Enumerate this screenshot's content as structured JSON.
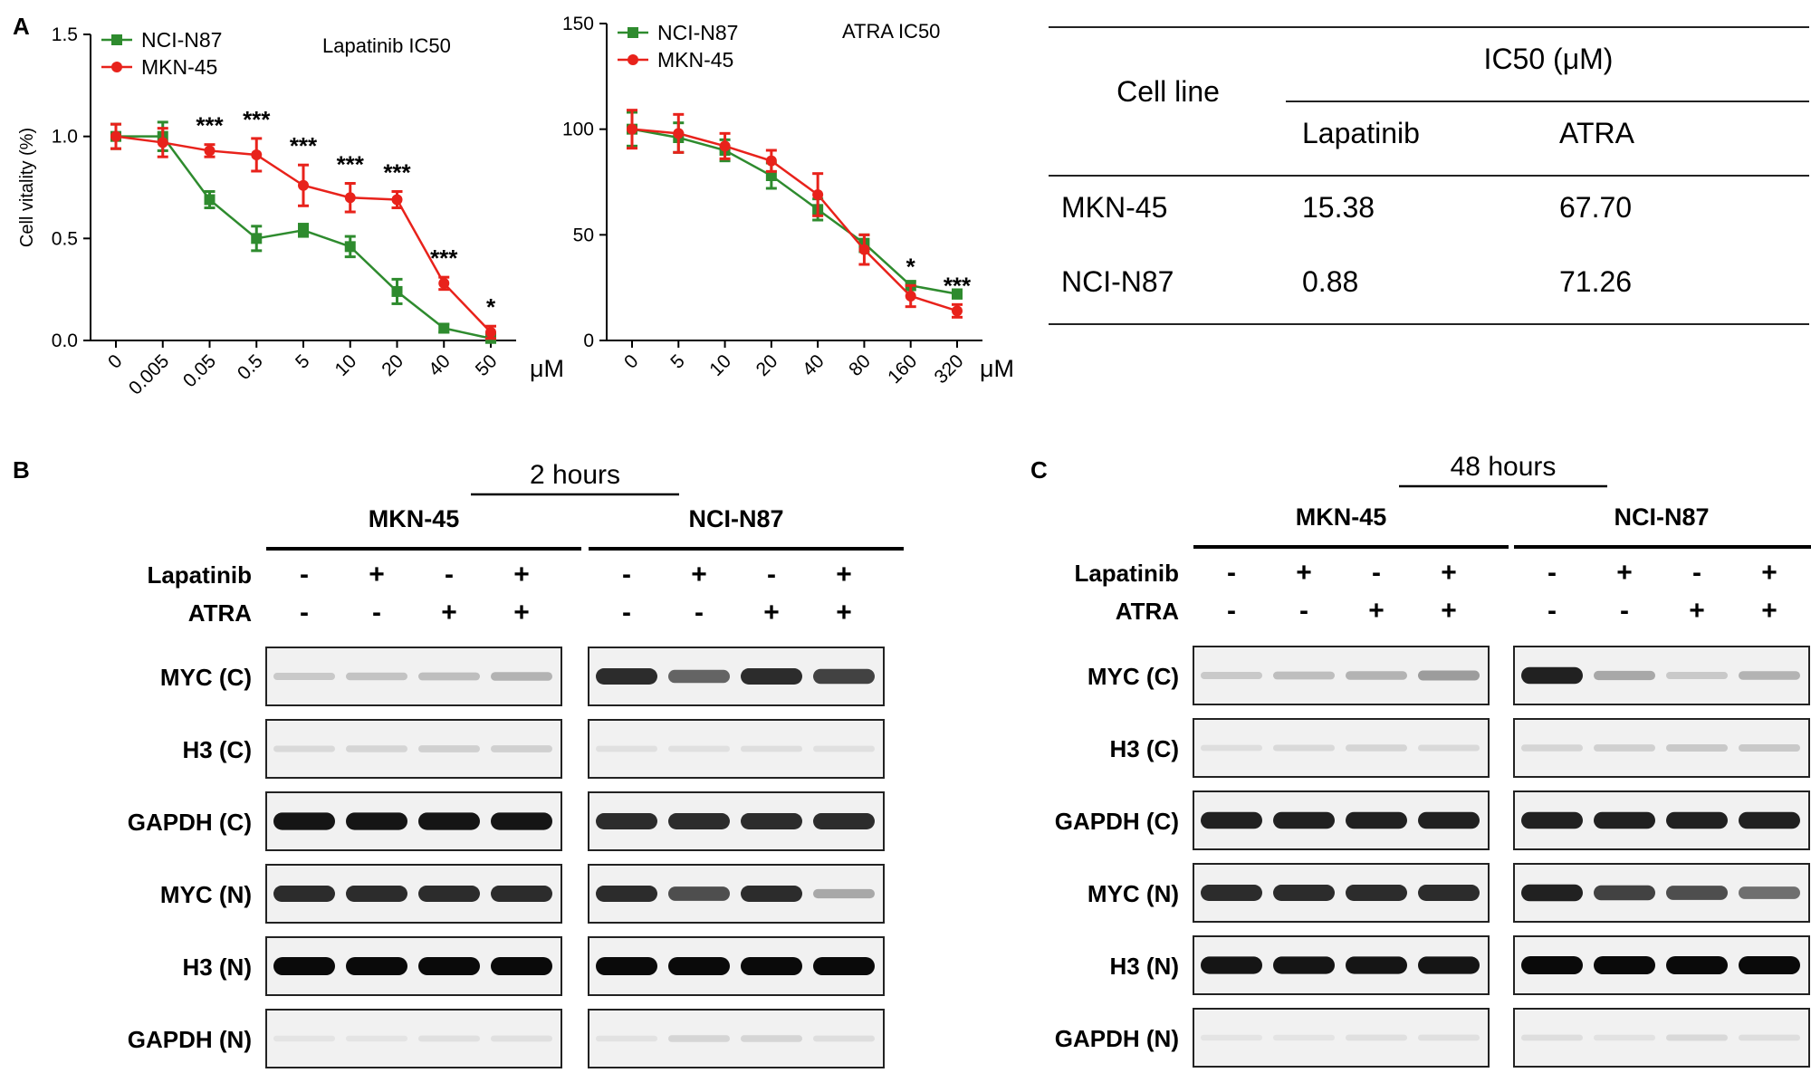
{
  "panel_labels": {
    "a": "A",
    "b": "B",
    "c": "C"
  },
  "chart_data": [
    {
      "type": "line",
      "title": "Lapatinib IC50",
      "xlabel": "",
      "ylabel": "Cell vitality (%)",
      "x_unit": "μM",
      "categories": [
        "0",
        "0.005",
        "0.05",
        "0.5",
        "5",
        "10",
        "20",
        "40",
        "50"
      ],
      "ylim": [
        0,
        1.5
      ],
      "yticks": [
        "0.0",
        "0.5",
        "1.0",
        "1.5"
      ],
      "legend_position": "top-left",
      "series": [
        {
          "name": "NCI-N87",
          "color": "#2e8b2e",
          "marker": "square",
          "values": [
            1.0,
            1.0,
            0.69,
            0.5,
            0.54,
            0.46,
            0.24,
            0.06,
            0.01
          ],
          "errors": [
            0.06,
            0.07,
            0.04,
            0.06,
            0.03,
            0.05,
            0.06,
            0.02,
            0.02
          ]
        },
        {
          "name": "MKN-45",
          "color": "#e8221b",
          "marker": "circle",
          "values": [
            1.0,
            0.97,
            0.93,
            0.91,
            0.76,
            0.7,
            0.69,
            0.28,
            0.04
          ],
          "errors": [
            0.06,
            0.07,
            0.03,
            0.08,
            0.1,
            0.07,
            0.04,
            0.03,
            0.03
          ]
        }
      ],
      "annotations": [
        "",
        "",
        "***",
        "***",
        "***",
        "***",
        "***",
        "***",
        "*"
      ]
    },
    {
      "type": "line",
      "title": "ATRA IC50",
      "xlabel": "",
      "ylabel": "",
      "x_unit": "μM",
      "categories": [
        "0",
        "5",
        "10",
        "20",
        "40",
        "80",
        "160",
        "320"
      ],
      "ylim": [
        0,
        150
      ],
      "yticks": [
        "0",
        "50",
        "100",
        "150"
      ],
      "legend_position": "top-left",
      "series": [
        {
          "name": "NCI-N87",
          "color": "#2e8b2e",
          "marker": "square",
          "values": [
            100,
            96,
            90,
            78,
            62,
            46,
            26,
            22
          ],
          "errors": [
            8,
            7,
            5,
            6,
            5,
            4,
            2,
            2
          ]
        },
        {
          "name": "MKN-45",
          "color": "#e8221b",
          "marker": "circle",
          "values": [
            100,
            98,
            92,
            85,
            69,
            43,
            21,
            14
          ],
          "errors": [
            9,
            9,
            6,
            5,
            10,
            7,
            5,
            3
          ]
        }
      ],
      "annotations": [
        "",
        "",
        "",
        "",
        "",
        "",
        "*",
        "***"
      ]
    },
    {
      "type": "table",
      "row_header": "Cell line",
      "group_header": "IC50 (μM)",
      "columns": [
        "Lapatinib",
        "ATRA"
      ],
      "rows": [
        {
          "label": "MKN-45",
          "values": [
            "15.38",
            "67.70"
          ]
        },
        {
          "label": "NCI-N87",
          "values": [
            "0.88",
            "71.26"
          ]
        }
      ]
    }
  ],
  "blots": [
    {
      "time_label": "2 hours",
      "cell_lines": [
        "MKN-45",
        "NCI-N87"
      ],
      "treatments": [
        {
          "name": "Lapatinib",
          "states": [
            "-",
            "+",
            "-",
            "+"
          ]
        },
        {
          "name": "ATRA",
          "states": [
            "-",
            "-",
            "+",
            "+"
          ]
        }
      ],
      "bands": [
        {
          "label": "MYC (C)",
          "intensity": [
            [
              0.15,
              0.18,
              0.2,
              0.25
            ],
            [
              0.85,
              0.6,
              0.85,
              0.75
            ]
          ]
        },
        {
          "label": "H3 (C)",
          "intensity": [
            [
              0.08,
              0.1,
              0.12,
              0.12
            ],
            [
              0.05,
              0.05,
              0.06,
              0.05
            ]
          ]
        },
        {
          "label": "GAPDH (C)",
          "intensity": [
            [
              0.95,
              0.95,
              0.95,
              0.95
            ],
            [
              0.85,
              0.85,
              0.85,
              0.85
            ]
          ]
        },
        {
          "label": "MYC (N)",
          "intensity": [
            [
              0.85,
              0.85,
              0.85,
              0.85
            ],
            [
              0.85,
              0.7,
              0.85,
              0.3
            ]
          ]
        },
        {
          "label": "H3 (N)",
          "intensity": [
            [
              1.0,
              1.0,
              1.0,
              1.0
            ],
            [
              1.0,
              1.0,
              1.0,
              1.0
            ]
          ]
        },
        {
          "label": "GAPDH (N)",
          "intensity": [
            [
              0.03,
              0.03,
              0.05,
              0.05
            ],
            [
              0.04,
              0.1,
              0.1,
              0.06
            ]
          ]
        }
      ]
    },
    {
      "time_label": "48 hours",
      "cell_lines": [
        "MKN-45",
        "NCI-N87"
      ],
      "treatments": [
        {
          "name": "Lapatinib",
          "states": [
            "-",
            "+",
            "-",
            "+"
          ]
        },
        {
          "name": "ATRA",
          "states": [
            "-",
            "-",
            "+",
            "+"
          ]
        }
      ],
      "bands": [
        {
          "label": "MYC (C)",
          "intensity": [
            [
              0.15,
              0.2,
              0.25,
              0.35
            ],
            [
              0.9,
              0.3,
              0.15,
              0.25
            ]
          ]
        },
        {
          "label": "H3 (C)",
          "intensity": [
            [
              0.06,
              0.08,
              0.1,
              0.08
            ],
            [
              0.1,
              0.12,
              0.15,
              0.15
            ]
          ]
        },
        {
          "label": "GAPDH (C)",
          "intensity": [
            [
              0.9,
              0.9,
              0.9,
              0.9
            ],
            [
              0.9,
              0.9,
              0.9,
              0.9
            ]
          ]
        },
        {
          "label": "MYC (N)",
          "intensity": [
            [
              0.85,
              0.85,
              0.85,
              0.85
            ],
            [
              0.9,
              0.75,
              0.7,
              0.55
            ]
          ]
        },
        {
          "label": "H3 (N)",
          "intensity": [
            [
              0.95,
              0.95,
              0.95,
              0.95
            ],
            [
              1.0,
              1.0,
              1.0,
              1.0
            ]
          ]
        },
        {
          "label": "GAPDH (N)",
          "intensity": [
            [
              0.03,
              0.03,
              0.05,
              0.05
            ],
            [
              0.06,
              0.04,
              0.08,
              0.06
            ]
          ]
        }
      ]
    }
  ]
}
